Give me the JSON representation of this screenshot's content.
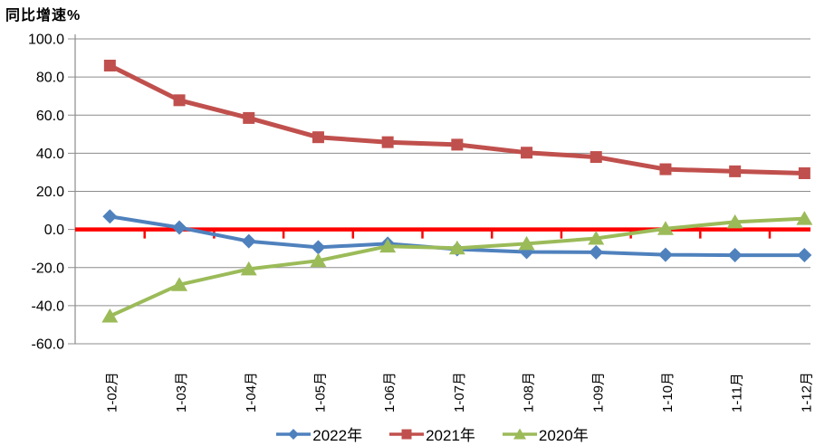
{
  "chart_data": {
    "type": "line",
    "title": "同比增速%",
    "xlabel": "",
    "ylabel": "同比增速%",
    "categories": [
      "1-02月",
      "1-03月",
      "1-04月",
      "1-05月",
      "1-06月",
      "1-07月",
      "1-08月",
      "1-09月",
      "1-10月",
      "1-11月",
      "1-12月"
    ],
    "series": [
      {
        "name": "2022年",
        "color": "#4F81BD",
        "marker": "diamond",
        "values": [
          6.8,
          1.0,
          -6.2,
          -9.4,
          -7.5,
          -10.4,
          -11.8,
          -12.0,
          -13.3,
          -13.5,
          -13.5
        ]
      },
      {
        "name": "2021年",
        "color": "#C0504D",
        "marker": "square",
        "values": [
          86.0,
          67.8,
          58.5,
          48.4,
          45.8,
          44.5,
          40.3,
          38.0,
          31.6,
          30.5,
          29.5
        ]
      },
      {
        "name": "2020年",
        "color": "#9BBB59",
        "marker": "triangle",
        "values": [
          -45.5,
          -29.0,
          -20.8,
          -16.4,
          -8.8,
          -9.8,
          -7.5,
          -4.7,
          0.4,
          3.9,
          5.7
        ]
      }
    ],
    "y_axis": {
      "min": -60,
      "max": 100,
      "step": 20,
      "tick_labels": [
        "100.0",
        "80.0",
        "60.0",
        "40.0",
        "20.0",
        "0.0",
        "-20.0",
        "-40.0",
        "-60.0"
      ]
    },
    "zero_line_color": "#FF0000",
    "gridline_color": "#8C8C8C",
    "axis_color": "#8C8C8C",
    "grid": true,
    "legend_position": "bottom"
  }
}
